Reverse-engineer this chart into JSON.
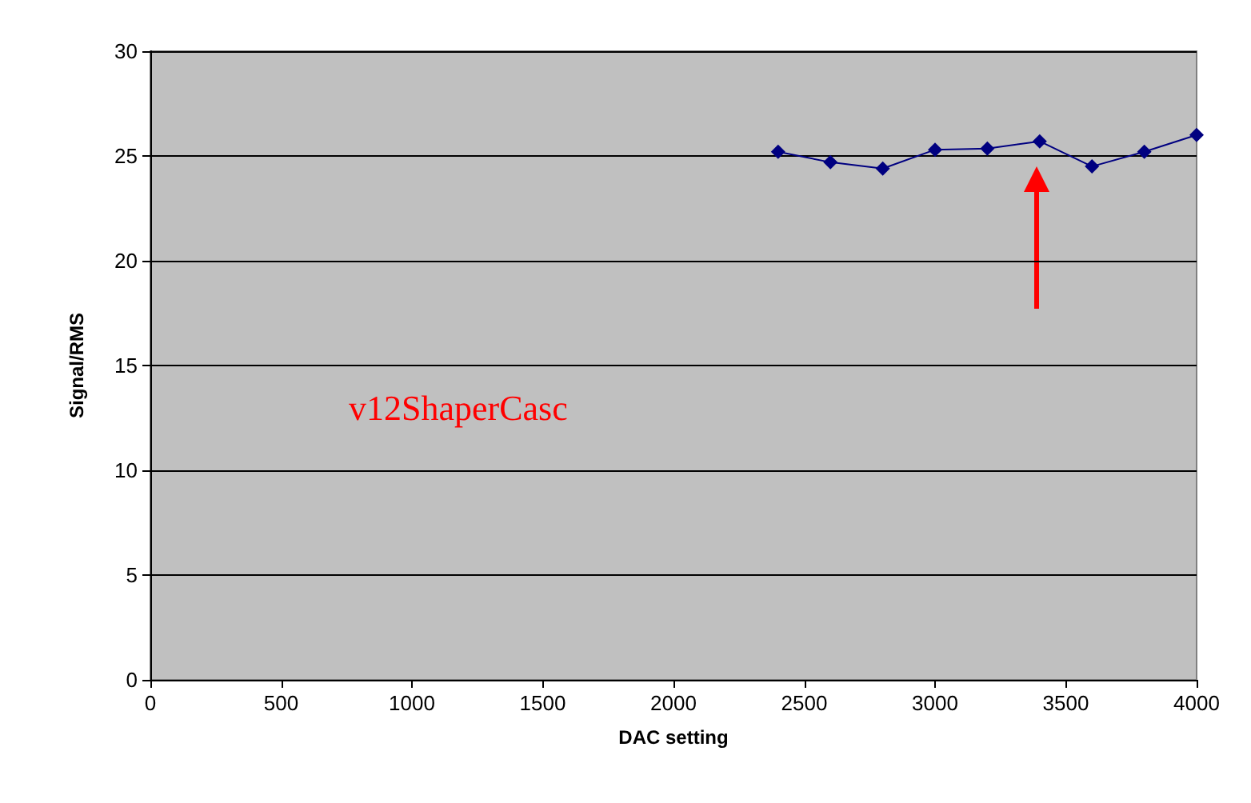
{
  "chart_data": {
    "type": "line",
    "xlabel": "DAC setting",
    "ylabel": "Signal/RMS",
    "x": [
      2400,
      2600,
      2800,
      3000,
      3200,
      3400,
      3600,
      3800,
      4000
    ],
    "series": [
      {
        "color": "#000080",
        "values": [
          25.2,
          24.7,
          24.4,
          25.3,
          25.35,
          25.7,
          24.5,
          25.2,
          26.0
        ]
      }
    ],
    "xlim": [
      0,
      4000
    ],
    "xticks": [
      0,
      500,
      1000,
      1500,
      2000,
      2500,
      3000,
      3500,
      4000
    ],
    "ylim": [
      0,
      30
    ],
    "yticks": [
      0,
      5,
      10,
      15,
      20,
      25,
      30
    ],
    "grid": "y",
    "marker": "diamond",
    "line_style": "solid",
    "annotations": [
      "v12ShaperCasc"
    ]
  }
}
